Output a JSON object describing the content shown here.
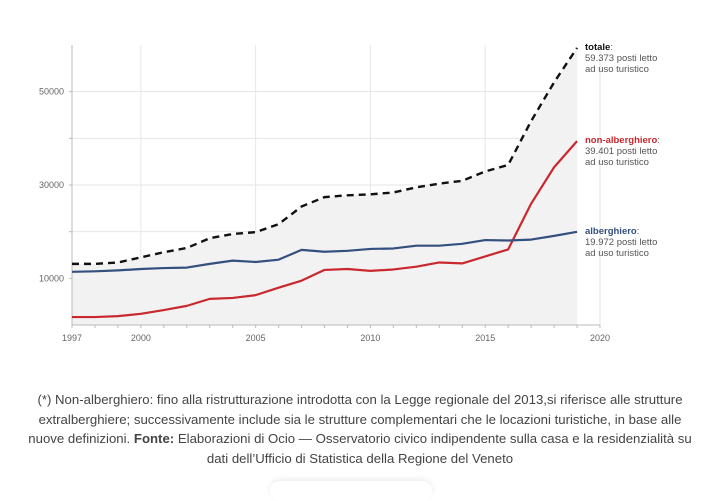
{
  "chart_data": {
    "type": "line",
    "title": "",
    "xlabel": "",
    "ylabel": "",
    "x": [
      1997,
      1998,
      1999,
      2000,
      2001,
      2002,
      2003,
      2004,
      2005,
      2006,
      2007,
      2008,
      2009,
      2010,
      2011,
      2012,
      2013,
      2014,
      2015,
      2016,
      2017,
      2018,
      2019
    ],
    "xlim": [
      1997,
      2020
    ],
    "ylim": [
      0,
      60000
    ],
    "x_ticks": [
      "1997",
      "2000",
      "2005",
      "2010",
      "2015",
      "2020"
    ],
    "x_tick_values": [
      1997,
      2000,
      2005,
      2010,
      2015,
      2020
    ],
    "y_ticks": [
      "10000",
      "30000",
      "50000"
    ],
    "y_tick_values": [
      10000,
      30000,
      50000
    ],
    "y_gridlines": [
      10000,
      20000,
      30000,
      40000,
      50000
    ],
    "grid": true,
    "shaded_area_under": "totale",
    "series": [
      {
        "name": "totale",
        "style": "dashed",
        "color": "#111111",
        "values": [
          13100,
          13100,
          13400,
          14500,
          15600,
          16500,
          18600,
          19500,
          19900,
          21600,
          25400,
          27400,
          27800,
          28000,
          28400,
          29500,
          30300,
          30900,
          32900,
          34300,
          43700,
          52000,
          59373
        ]
      },
      {
        "name": "non-alberghiero",
        "style": "solid",
        "color": "#c8282e",
        "values": [
          1700,
          1700,
          1900,
          2400,
          3200,
          4100,
          5600,
          5800,
          6400,
          8000,
          9500,
          11800,
          12000,
          11600,
          11900,
          12500,
          13400,
          13200,
          14700,
          16200,
          26000,
          33800,
          39401
        ]
      },
      {
        "name": "alberghiero",
        "style": "solid",
        "color": "#34507e",
        "values": [
          11400,
          11500,
          11700,
          12000,
          12200,
          12300,
          13100,
          13800,
          13500,
          14000,
          16100,
          15700,
          15900,
          16300,
          16400,
          17000,
          17000,
          17400,
          18200,
          18100,
          18300,
          19100,
          19972
        ]
      }
    ],
    "annotations": [
      {
        "series": "totale",
        "name": "totale",
        "line1": "59.373 posti letto",
        "line2": "ad uso turistico",
        "color": "#111111"
      },
      {
        "series": "non-alberghiero",
        "name": "non-alberghiero",
        "line1": "39.401 posti letto",
        "line2": "ad uso turistico",
        "color": "#c8282e"
      },
      {
        "series": "alberghiero",
        "name": "alberghiero",
        "line1": "19.972 posti letto",
        "line2": "ad uso turistico",
        "color": "#34507e"
      }
    ]
  },
  "caption": {
    "note": "(*) Non-alberghiero: fino alla ristrutturazione introdotta con la Legge regionale del 2013,si riferisce alle strutture extralberghiere; successivamente include sia le strutture complementari che le locazioni turistiche, in base alle nuove definizioni.",
    "source_label": "Fonte:",
    "source_text": "Elaborazioni di Ocio — Osservatorio civico indipendente sulla casa e la residenzialità su dati dell’Ufficio di Statistica della Regione del Veneto"
  }
}
